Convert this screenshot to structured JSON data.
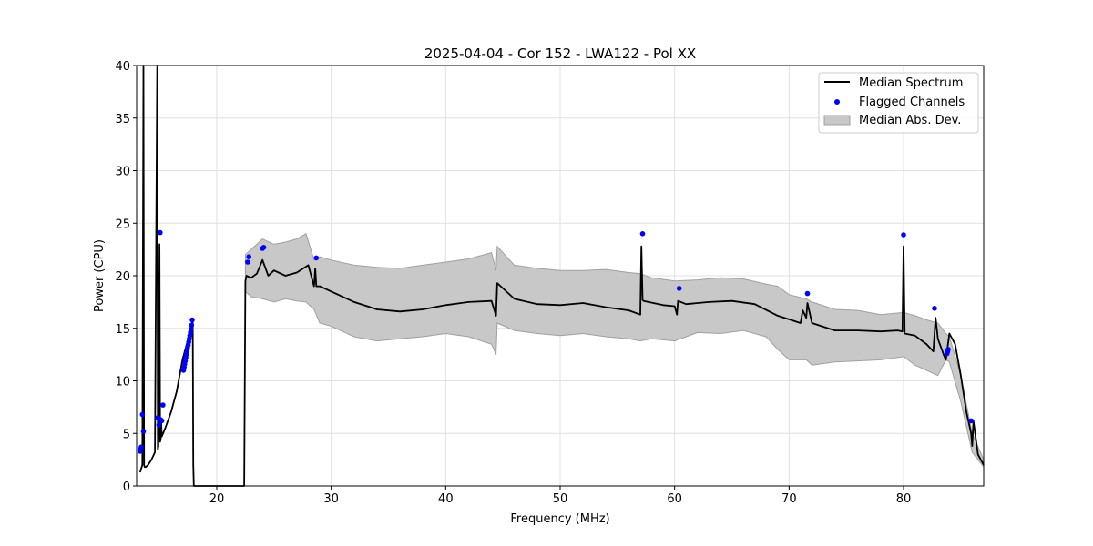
{
  "chart_data": {
    "type": "line",
    "title": "2025-04-04 - Cor 152 - LWA122 - Pol XX",
    "xlabel": "Frequency (MHz)",
    "ylabel": "Power (CPU)",
    "xlim": [
      13,
      87
    ],
    "ylim": [
      0,
      40
    ],
    "xticks": [
      20,
      30,
      40,
      50,
      60,
      70,
      80
    ],
    "yticks": [
      0,
      5,
      10,
      15,
      20,
      25,
      30,
      35,
      40
    ],
    "grid": true,
    "legend_position": "top-right",
    "legend": [
      "Median Spectrum",
      "Flagged Channels",
      "Median Abs. Dev."
    ],
    "colors": {
      "median": "#000000",
      "flagged": "#0000ff",
      "band_fill": "#c8c8c8",
      "band_edge": "#a0a0a0",
      "grid": "#e0e0e0"
    },
    "median_spectrum": {
      "x": [
        13.3,
        13.5,
        13.6,
        13.65,
        13.7,
        13.8,
        14.0,
        14.3,
        14.6,
        14.8,
        14.85,
        14.9,
        15.0,
        15.05,
        15.1,
        15.15,
        15.2,
        15.5,
        16.0,
        16.5,
        17.0,
        17.5,
        17.9,
        17.95,
        18.0,
        22.4,
        22.5,
        22.6,
        23.0,
        23.5,
        24.0,
        24.5,
        25.0,
        26.0,
        27.0,
        28.0,
        28.5,
        28.6,
        28.7,
        29.0,
        30.0,
        32.0,
        34.0,
        36.0,
        38.0,
        40.0,
        42.0,
        44.0,
        44.4,
        44.5,
        46.0,
        48.0,
        50.0,
        52.0,
        54.0,
        56.0,
        57.0,
        57.1,
        57.2,
        57.3,
        59.0,
        60.0,
        60.2,
        60.3,
        61.0,
        63.0,
        65.0,
        67.0,
        69.0,
        71.0,
        71.2,
        71.5,
        71.6,
        72.0,
        74.0,
        76.0,
        78.0,
        79.5,
        79.9,
        80.0,
        80.1,
        81.0,
        82.0,
        82.6,
        82.8,
        83.0,
        83.5,
        83.7,
        84.0,
        84.5,
        85.0,
        85.5,
        85.9,
        86.0,
        86.1,
        86.5,
        87.0
      ],
      "y": [
        1.3,
        2.0,
        40,
        2.0,
        1.8,
        1.8,
        2.0,
        2.5,
        3.2,
        40,
        3.5,
        3.8,
        23.0,
        4.2,
        4.5,
        6.0,
        4.7,
        5.5,
        7.0,
        9.0,
        12.0,
        14.0,
        15.8,
        2.0,
        0.0,
        0.0,
        19.5,
        20.0,
        19.8,
        20.2,
        21.5,
        20.0,
        20.5,
        20.0,
        20.3,
        21.0,
        19.0,
        20.7,
        19.0,
        19.0,
        18.5,
        17.5,
        16.8,
        16.6,
        16.8,
        17.2,
        17.5,
        17.6,
        16.2,
        19.3,
        17.8,
        17.3,
        17.2,
        17.4,
        17.0,
        16.7,
        16.3,
        22.8,
        17.7,
        17.6,
        17.2,
        17.1,
        16.3,
        17.6,
        17.3,
        17.5,
        17.6,
        17.3,
        16.2,
        15.5,
        16.7,
        16.0,
        17.4,
        15.5,
        14.8,
        14.8,
        14.7,
        14.8,
        14.7,
        22.8,
        14.5,
        14.3,
        13.5,
        12.8,
        16.0,
        14.0,
        12.5,
        12.0,
        14.5,
        13.5,
        10.5,
        7.0,
        5.0,
        3.8,
        6.2,
        3.0,
        2.0
      ]
    },
    "mad_band": {
      "x": [
        22.5,
        23.0,
        24.0,
        25.0,
        26.0,
        27.0,
        27.8,
        28.5,
        29.0,
        30.0,
        32.0,
        34.0,
        36.0,
        38.0,
        40.0,
        42.0,
        44.0,
        44.4,
        44.5,
        46.0,
        48.0,
        50.0,
        52.0,
        54.0,
        56.0,
        57.0,
        58.0,
        60.0,
        62.0,
        64.0,
        66.0,
        68.0,
        69.0,
        70.0,
        71.5,
        72.0,
        74.0,
        76.0,
        78.0,
        80.0,
        81.0,
        82.0,
        83.0,
        83.7,
        84.0,
        85.0,
        86.0,
        87.0
      ],
      "upper": [
        22.0,
        22.5,
        23.5,
        23.0,
        23.2,
        23.5,
        24.0,
        21.5,
        21.8,
        21.5,
        21.0,
        20.8,
        20.7,
        21.0,
        21.3,
        21.6,
        22.2,
        20.5,
        22.8,
        21.0,
        20.7,
        20.5,
        20.5,
        20.6,
        20.3,
        20.2,
        19.8,
        19.5,
        19.6,
        19.8,
        19.7,
        19.2,
        19.0,
        18.2,
        17.8,
        17.5,
        16.8,
        16.7,
        16.3,
        16.5,
        16.2,
        15.8,
        15.5,
        14.5,
        14.2,
        10.5,
        5.0,
        2.5
      ],
      "lower": [
        18.5,
        18.0,
        17.8,
        17.5,
        17.8,
        17.6,
        17.5,
        16.8,
        15.5,
        15.2,
        14.2,
        13.8,
        14.0,
        14.2,
        14.5,
        14.2,
        13.5,
        12.5,
        15.5,
        14.8,
        14.5,
        14.3,
        14.5,
        14.2,
        14.0,
        13.8,
        14.0,
        13.8,
        14.6,
        14.5,
        14.8,
        14.2,
        13.0,
        12.0,
        12.0,
        11.5,
        11.8,
        11.9,
        12.0,
        12.3,
        11.5,
        11.0,
        10.5,
        12.0,
        11.8,
        8.0,
        3.2,
        1.8
      ]
    },
    "flagged_channels": {
      "x": [
        13.3,
        13.35,
        13.4,
        13.5,
        13.6,
        14.85,
        14.95,
        15.05,
        15.1,
        15.2,
        15.3,
        17.1,
        17.15,
        17.2,
        17.25,
        17.3,
        17.35,
        17.4,
        17.45,
        17.5,
        17.55,
        17.6,
        17.65,
        17.7,
        17.75,
        17.8,
        17.85,
        22.7,
        22.8,
        24.0,
        24.1,
        28.7,
        57.2,
        60.4,
        71.6,
        80.0,
        82.7,
        83.8,
        83.85,
        83.9,
        85.9
      ],
      "y": [
        3.3,
        3.5,
        3.7,
        6.8,
        5.2,
        6.5,
        5.8,
        24.1,
        6.3,
        6.2,
        7.7,
        11.0,
        11.3,
        11.6,
        11.9,
        12.2,
        12.5,
        12.8,
        13.1,
        13.4,
        13.7,
        14.0,
        14.3,
        14.6,
        14.9,
        15.3,
        15.8,
        21.3,
        21.8,
        22.6,
        22.7,
        21.7,
        24.0,
        18.8,
        18.3,
        23.9,
        16.9,
        12.6,
        12.8,
        13.0,
        6.2
      ]
    }
  }
}
